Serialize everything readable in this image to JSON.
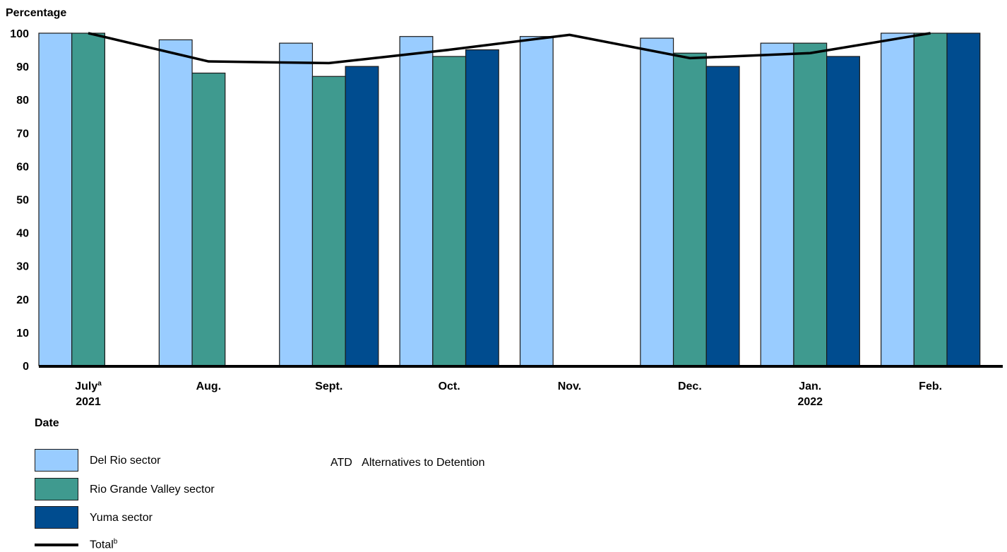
{
  "chart_data": {
    "type": "bar",
    "ylabel": "Percentage",
    "xlabel": "Date",
    "ylim": [
      0,
      100
    ],
    "yticks": [
      0,
      10,
      20,
      30,
      40,
      50,
      60,
      70,
      80,
      90,
      100
    ],
    "categories": [
      {
        "label": "July",
        "sup": "a",
        "sub": "2021"
      },
      {
        "label": "Aug.",
        "sup": "",
        "sub": ""
      },
      {
        "label": "Sept.",
        "sup": "",
        "sub": ""
      },
      {
        "label": "Oct.",
        "sup": "",
        "sub": ""
      },
      {
        "label": "Nov.",
        "sup": "",
        "sub": ""
      },
      {
        "label": "Dec.",
        "sup": "",
        "sub": ""
      },
      {
        "label": "Jan.",
        "sup": "",
        "sub": "2022"
      },
      {
        "label": "Feb.",
        "sup": "",
        "sub": ""
      }
    ],
    "series": [
      {
        "name": "Del Rio sector",
        "color": "#99ccff",
        "values": [
          100,
          98,
          97,
          99,
          99,
          98.5,
          97,
          100
        ]
      },
      {
        "name": "Rio Grande Valley sector",
        "color": "#3f9a8f",
        "values": [
          100,
          88,
          87,
          93,
          null,
          94,
          97,
          100
        ]
      },
      {
        "name": "Yuma sector",
        "color": "#004c8f",
        "values": [
          null,
          null,
          90,
          95,
          null,
          90,
          93,
          100
        ]
      }
    ],
    "line": {
      "name": "Total",
      "sup": "b",
      "color": "#000000",
      "values": [
        100,
        91.5,
        91,
        95,
        99.5,
        92.5,
        94,
        100
      ]
    },
    "legend_position": "bottom-left",
    "grid": false
  },
  "note": {
    "abbr": "ATD",
    "text": "Alternatives to Detention"
  }
}
